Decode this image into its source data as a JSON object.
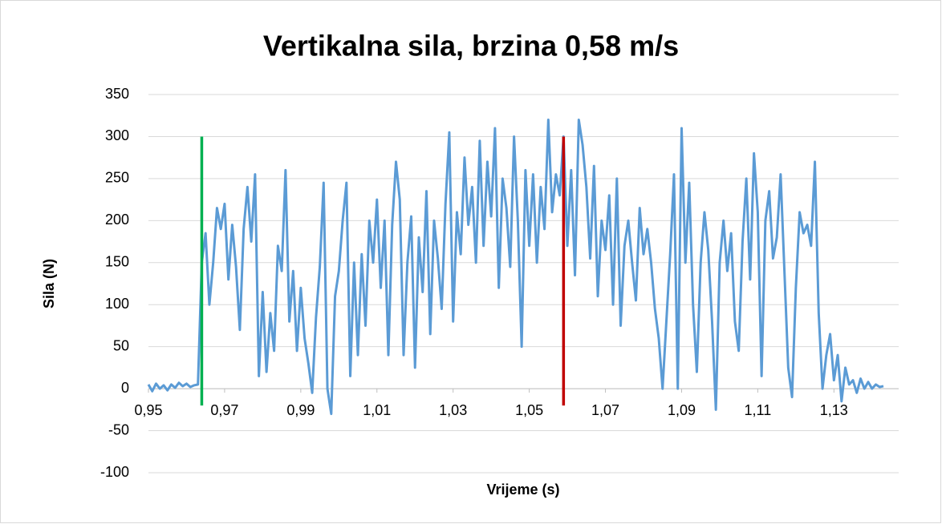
{
  "chart_data": {
    "type": "line",
    "title": "Vertikalna sila, brzina 0,58 m/s",
    "x_label": "Vrijeme (s)",
    "y_label": "Sila (N)",
    "xlim": [
      0.95,
      1.147
    ],
    "ylim": [
      -100,
      350
    ],
    "yticks": [
      -100,
      -50,
      0,
      50,
      100,
      150,
      200,
      250,
      300,
      350
    ],
    "xticks": [
      {
        "value": 0.95,
        "label": "0,95"
      },
      {
        "value": 0.97,
        "label": "0,97"
      },
      {
        "value": 0.99,
        "label": "0,99"
      },
      {
        "value": 1.01,
        "label": "1,01"
      },
      {
        "value": 1.03,
        "label": "1,03"
      },
      {
        "value": 1.05,
        "label": "1,05"
      },
      {
        "value": 1.07,
        "label": "1,07"
      },
      {
        "value": 1.09,
        "label": "1,09"
      },
      {
        "value": 1.11,
        "label": "1,11"
      },
      {
        "value": 1.13,
        "label": "1,13"
      }
    ],
    "grid": true,
    "series": [
      {
        "color": "#5b9bd5",
        "x": [
          0.95,
          0.951,
          0.952,
          0.953,
          0.954,
          0.955,
          0.956,
          0.957,
          0.958,
          0.959,
          0.96,
          0.961,
          0.962,
          0.963,
          0.964,
          0.965,
          0.966,
          0.967,
          0.968,
          0.969,
          0.97,
          0.971,
          0.972,
          0.973,
          0.974,
          0.975,
          0.976,
          0.977,
          0.978,
          0.979,
          0.98,
          0.981,
          0.982,
          0.983,
          0.984,
          0.985,
          0.986,
          0.987,
          0.988,
          0.989,
          0.99,
          0.991,
          0.992,
          0.993,
          0.994,
          0.995,
          0.996,
          0.997,
          0.998,
          0.999,
          1.0,
          1.001,
          1.002,
          1.003,
          1.004,
          1.005,
          1.006,
          1.007,
          1.008,
          1.009,
          1.01,
          1.011,
          1.012,
          1.013,
          1.014,
          1.015,
          1.016,
          1.017,
          1.018,
          1.019,
          1.02,
          1.021,
          1.022,
          1.023,
          1.024,
          1.025,
          1.026,
          1.027,
          1.028,
          1.029,
          1.03,
          1.031,
          1.032,
          1.033,
          1.034,
          1.035,
          1.036,
          1.037,
          1.038,
          1.039,
          1.04,
          1.041,
          1.042,
          1.043,
          1.044,
          1.045,
          1.046,
          1.047,
          1.048,
          1.049,
          1.05,
          1.051,
          1.052,
          1.053,
          1.054,
          1.055,
          1.056,
          1.057,
          1.058,
          1.059,
          1.06,
          1.061,
          1.062,
          1.063,
          1.064,
          1.065,
          1.066,
          1.067,
          1.068,
          1.069,
          1.07,
          1.071,
          1.072,
          1.073,
          1.074,
          1.075,
          1.076,
          1.077,
          1.078,
          1.079,
          1.08,
          1.081,
          1.082,
          1.083,
          1.084,
          1.085,
          1.086,
          1.087,
          1.088,
          1.089,
          1.09,
          1.091,
          1.092,
          1.093,
          1.094,
          1.095,
          1.096,
          1.097,
          1.098,
          1.099,
          1.1,
          1.101,
          1.102,
          1.103,
          1.104,
          1.105,
          1.106,
          1.107,
          1.108,
          1.109,
          1.11,
          1.111,
          1.112,
          1.113,
          1.114,
          1.115,
          1.116,
          1.117,
          1.118,
          1.119,
          1.12,
          1.121,
          1.122,
          1.123,
          1.124,
          1.125,
          1.126,
          1.127,
          1.128,
          1.129,
          1.13,
          1.131,
          1.132,
          1.133,
          1.134,
          1.135,
          1.136,
          1.137,
          1.138,
          1.139,
          1.14,
          1.141,
          1.142,
          1.143
        ],
        "values": [
          5,
          -3,
          6,
          0,
          4,
          -2,
          5,
          1,
          7,
          3,
          6,
          2,
          4,
          5,
          150,
          185,
          100,
          150,
          215,
          190,
          220,
          130,
          195,
          145,
          70,
          190,
          240,
          175,
          255,
          15,
          115,
          20,
          90,
          45,
          170,
          140,
          260,
          80,
          140,
          45,
          120,
          60,
          30,
          -5,
          85,
          145,
          245,
          0,
          -30,
          110,
          140,
          200,
          245,
          15,
          150,
          40,
          160,
          75,
          200,
          150,
          225,
          120,
          200,
          40,
          195,
          270,
          225,
          40,
          150,
          205,
          25,
          180,
          115,
          235,
          65,
          200,
          155,
          95,
          220,
          305,
          80,
          210,
          160,
          275,
          195,
          240,
          150,
          295,
          170,
          270,
          205,
          310,
          120,
          250,
          215,
          145,
          300,
          200,
          50,
          260,
          170,
          255,
          150,
          240,
          190,
          320,
          210,
          255,
          230,
          300,
          170,
          260,
          135,
          320,
          290,
          240,
          155,
          265,
          110,
          200,
          165,
          230,
          100,
          250,
          75,
          170,
          200,
          150,
          105,
          215,
          160,
          190,
          150,
          95,
          60,
          0,
          80,
          160,
          255,
          0,
          310,
          150,
          245,
          100,
          20,
          150,
          210,
          165,
          80,
          -25,
          150,
          200,
          140,
          185,
          80,
          45,
          175,
          250,
          130,
          280,
          210,
          15,
          200,
          235,
          155,
          180,
          255,
          140,
          25,
          -10,
          120,
          210,
          185,
          195,
          170,
          270,
          90,
          0,
          40,
          65,
          10,
          40,
          -15,
          25,
          5,
          10,
          -5,
          12,
          0,
          8,
          0,
          5,
          2,
          3
        ]
      },
      {
        "color": "#00b050",
        "x": [
          0.964,
          0.964
        ],
        "values": [
          -20,
          300
        ]
      },
      {
        "color": "#c00000",
        "x": [
          1.059,
          1.059
        ],
        "values": [
          -20,
          300
        ]
      }
    ]
  }
}
